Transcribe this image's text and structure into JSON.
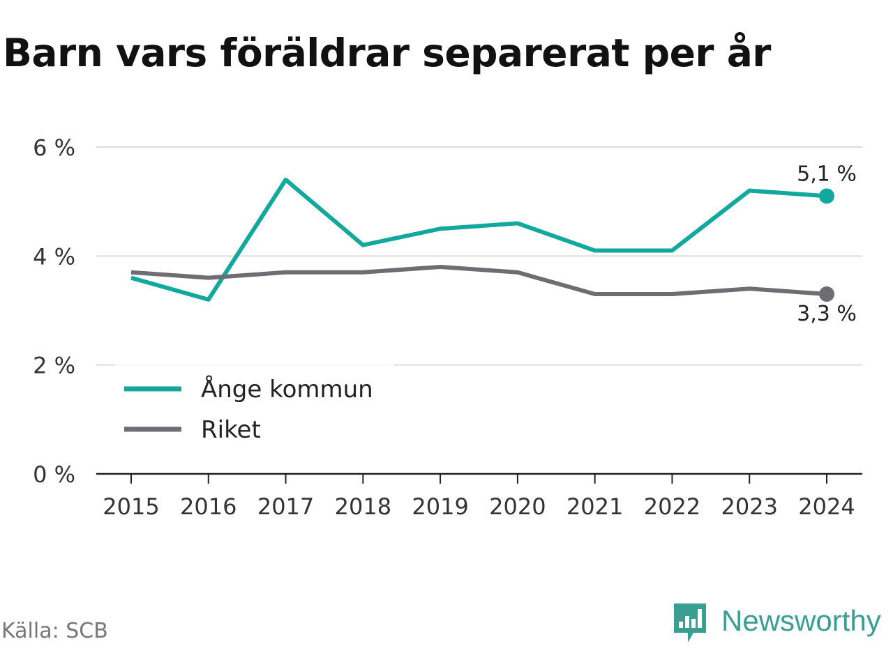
{
  "title": "Barn vars föräldrar separerat per år",
  "source": "Källa: SCB",
  "brand": {
    "name": "Newsworthy"
  },
  "colors": {
    "series_1": "#13a89e",
    "series_2": "#6e6d73",
    "brand": "#3a9e93"
  },
  "chart_data": {
    "type": "line",
    "title": "Barn vars föräldrar separerat per år",
    "x": [
      "2015",
      "2016",
      "2017",
      "2018",
      "2019",
      "2020",
      "2021",
      "2022",
      "2023",
      "2024"
    ],
    "ylim": [
      0,
      6
    ],
    "yticks": [
      {
        "value": 0,
        "label": "0 %"
      },
      {
        "value": 2,
        "label": "2 %"
      },
      {
        "value": 4,
        "label": "4 %"
      },
      {
        "value": 6,
        "label": "6 %"
      }
    ],
    "grid": true,
    "legend": "bottom-left",
    "series": [
      {
        "name": "Ånge kommun",
        "color": "#13a89e",
        "values": [
          3.6,
          3.2,
          5.4,
          4.2,
          4.5,
          4.6,
          4.1,
          4.1,
          5.2,
          5.1
        ],
        "end_label": "5,1 %"
      },
      {
        "name": "Riket",
        "color": "#6e6d73",
        "values": [
          3.7,
          3.6,
          3.7,
          3.7,
          3.8,
          3.7,
          3.3,
          3.3,
          3.4,
          3.3
        ],
        "end_label": "3,3 %"
      }
    ]
  }
}
